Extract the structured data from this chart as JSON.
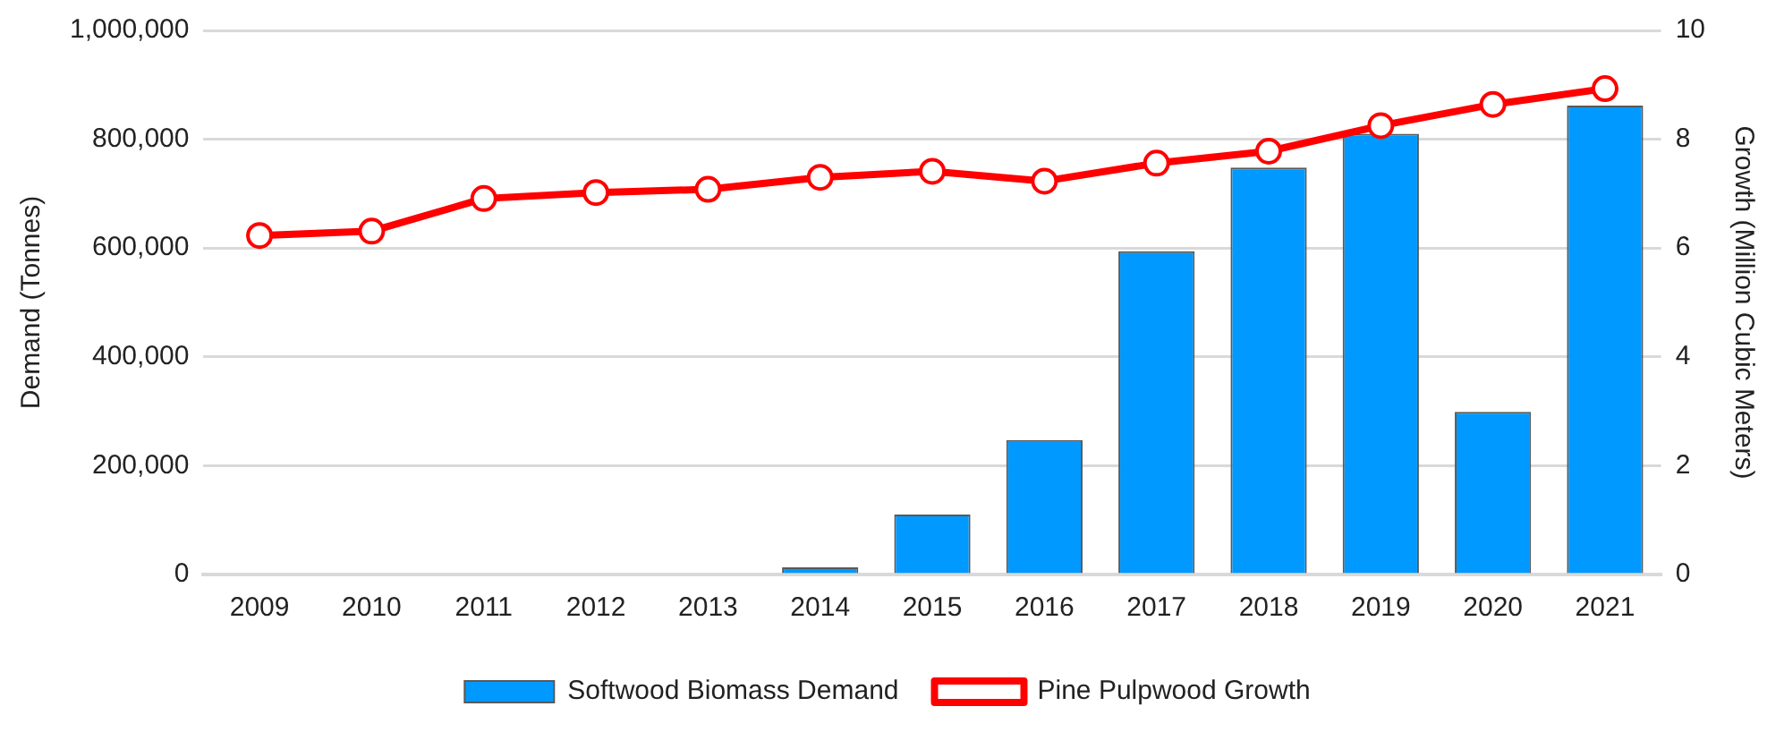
{
  "chart_data": {
    "type": "bar",
    "ylabel": "Demand (Tonnes)",
    "y2label": "Growth (Million Cubic Meters)",
    "categories": [
      "2009",
      "2010",
      "2011",
      "2012",
      "2013",
      "2014",
      "2015",
      "2016",
      "2017",
      "2018",
      "2019",
      "2020",
      "2021"
    ],
    "series": [
      {
        "name": "Softwood Biomass Demand",
        "color": "#0099ff",
        "values": [
          0,
          0,
          0,
          0,
          0,
          13000,
          110000,
          247000,
          594000,
          748000,
          810000,
          299000,
          862000
        ]
      },
      {
        "name": "Pine Pulpwood Growth",
        "type": "line",
        "axis": "y2",
        "color": "#ff0000",
        "marker": "circle",
        "values": [
          6.23,
          6.31,
          6.91,
          7.02,
          7.08,
          7.3,
          7.41,
          7.23,
          7.56,
          7.78,
          8.25,
          8.64,
          8.93
        ]
      }
    ],
    "ylim": [
      0,
      1000000
    ],
    "yticks": [
      {
        "value": 0,
        "label": "0"
      },
      {
        "value": 200000,
        "label": "200,000"
      },
      {
        "value": 400000,
        "label": "400,000"
      },
      {
        "value": 600000,
        "label": "600,000"
      },
      {
        "value": 800000,
        "label": "800,000"
      },
      {
        "value": 1000000,
        "label": "1,000,000"
      }
    ],
    "y2lim": [
      0,
      10
    ],
    "y2ticks": [
      0,
      2,
      4,
      6,
      8,
      10
    ],
    "grid": "y",
    "legend": "bottom"
  }
}
